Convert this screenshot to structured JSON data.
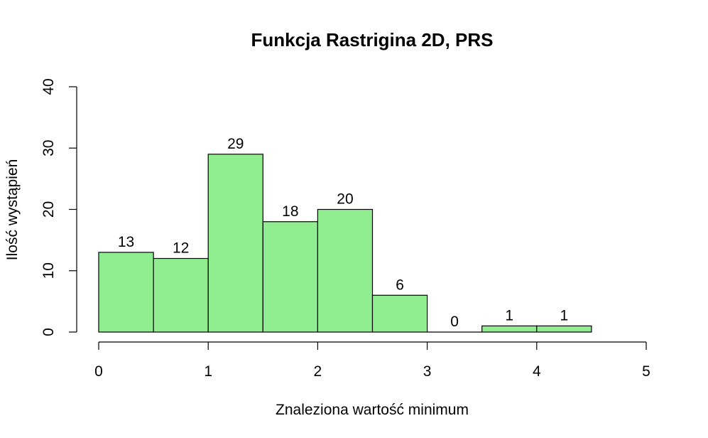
{
  "chart_data": {
    "type": "bar",
    "title": "Funkcja Rastrigina 2D, PRS",
    "xlabel": "Znaleziona wartość minimum",
    "ylabel": "Ilość wystąpień",
    "bins": [
      {
        "x0": 0.0,
        "x1": 0.5,
        "count": 13,
        "label": "13"
      },
      {
        "x0": 0.5,
        "x1": 1.0,
        "count": 12,
        "label": "12"
      },
      {
        "x0": 1.0,
        "x1": 1.5,
        "count": 29,
        "label": "29"
      },
      {
        "x0": 1.5,
        "x1": 2.0,
        "count": 18,
        "label": "18"
      },
      {
        "x0": 2.0,
        "x1": 2.5,
        "count": 20,
        "label": "20"
      },
      {
        "x0": 2.5,
        "x1": 3.0,
        "count": 6,
        "label": "6"
      },
      {
        "x0": 3.0,
        "x1": 3.5,
        "count": 0,
        "label": "0"
      },
      {
        "x0": 3.5,
        "x1": 4.0,
        "count": 1,
        "label": "1"
      },
      {
        "x0": 4.0,
        "x1": 4.5,
        "count": 1,
        "label": "1"
      }
    ],
    "xlim": [
      0,
      5
    ],
    "ylim": [
      0,
      40
    ],
    "xticks": [
      "0",
      "1",
      "2",
      "3",
      "4",
      "5"
    ],
    "yticks": [
      "0",
      "10",
      "20",
      "30",
      "40"
    ],
    "bar_color": "#90EE90",
    "border_color": "#000000",
    "grid": false,
    "legend": "none"
  }
}
